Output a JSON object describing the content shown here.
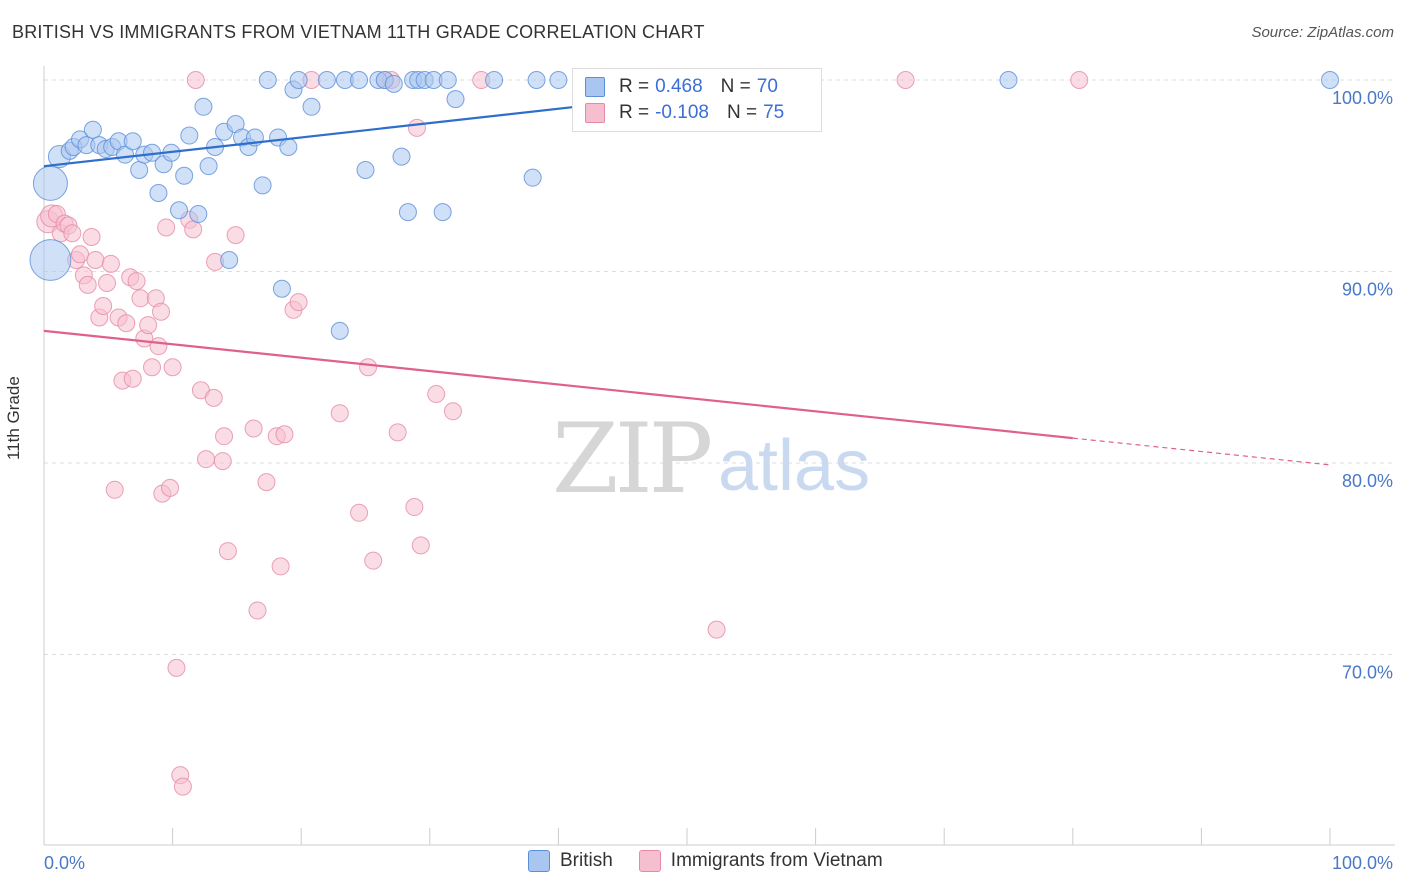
{
  "title": "BRITISH VS IMMIGRANTS FROM VIETNAM 11TH GRADE CORRELATION CHART",
  "source": "Source: ZipAtlas.com",
  "watermark": {
    "zip": "ZIP",
    "atlas": "atlas"
  },
  "colors": {
    "british_fill": "#a9c6f0",
    "british_stroke": "#5b8fd9",
    "british_line": "#2f6fcc",
    "vietnam_fill": "#f6bfd0",
    "vietnam_stroke": "#e68aa8",
    "vietnam_line": "#e0608c",
    "axis_text": "#4a78c8",
    "grid": "#dddddd"
  },
  "stats": {
    "british": {
      "r_label": "R =",
      "r_value": "0.468",
      "n_label": "N =",
      "n_value": "70"
    },
    "vietnam": {
      "r_label": "R =",
      "r_value": "-0.108",
      "n_label": "N =",
      "n_value": "75"
    }
  },
  "legend": {
    "british": "British",
    "vietnam": "Immigrants from Vietnam"
  },
  "chart_data": {
    "type": "scatter",
    "title": "BRITISH VS IMMIGRANTS FROM VIETNAM 11TH GRADE CORRELATION CHART",
    "xlabel": "",
    "ylabel": "11th Grade",
    "xlim": [
      0,
      100
    ],
    "ylim": [
      60,
      101.5
    ],
    "x_tick_labels": [
      "0.0%",
      "100.0%"
    ],
    "y_ticks": [
      70,
      80,
      90,
      100
    ],
    "y_tick_labels": [
      "70.0%",
      "80.0%",
      "90.0%",
      "100.0%"
    ],
    "grid": true,
    "legend_position": "bottom",
    "series": [
      {
        "name": "British",
        "trend": {
          "x": [
            0,
            60
          ],
          "y": [
            95.5,
            100.0
          ]
        },
        "points": [
          [
            0.5,
            94.6,
            2
          ],
          [
            0.5,
            90.6,
            2.4
          ],
          [
            1.2,
            96.0,
            1.3
          ],
          [
            2.0,
            96.3,
            1
          ],
          [
            2.3,
            96.5,
            1
          ],
          [
            2.8,
            96.9,
            1
          ],
          [
            3.3,
            96.6,
            1
          ],
          [
            3.8,
            97.4,
            1
          ],
          [
            4.3,
            96.6,
            1
          ],
          [
            4.8,
            96.4,
            1
          ],
          [
            5.3,
            96.5,
            1
          ],
          [
            5.8,
            96.8,
            1
          ],
          [
            6.3,
            96.1,
            1
          ],
          [
            6.9,
            96.8,
            1
          ],
          [
            7.4,
            95.3,
            1
          ],
          [
            7.8,
            96.1,
            1
          ],
          [
            8.4,
            96.2,
            1
          ],
          [
            8.9,
            94.1,
            1
          ],
          [
            9.3,
            95.6,
            1
          ],
          [
            9.9,
            96.2,
            1
          ],
          [
            10.5,
            93.2,
            1
          ],
          [
            10.9,
            95.0,
            1
          ],
          [
            11.3,
            97.1,
            1
          ],
          [
            12.0,
            93.0,
            1
          ],
          [
            12.4,
            98.6,
            1
          ],
          [
            12.8,
            95.5,
            1
          ],
          [
            13.3,
            96.5,
            1
          ],
          [
            14.0,
            97.3,
            1
          ],
          [
            14.4,
            90.6,
            1
          ],
          [
            14.9,
            97.7,
            1
          ],
          [
            15.4,
            97.0,
            1
          ],
          [
            15.9,
            96.5,
            1
          ],
          [
            16.4,
            97.0,
            1
          ],
          [
            17.0,
            94.5,
            1
          ],
          [
            17.4,
            100.0,
            1
          ],
          [
            18.2,
            97.0,
            1
          ],
          [
            18.5,
            89.1,
            1
          ],
          [
            19.0,
            96.5,
            1
          ],
          [
            19.4,
            99.5,
            1
          ],
          [
            19.8,
            100.0,
            1
          ],
          [
            20.8,
            98.6,
            1
          ],
          [
            22.0,
            100.0,
            1
          ],
          [
            23.0,
            86.9,
            1
          ],
          [
            23.4,
            100.0,
            1
          ],
          [
            24.5,
            100.0,
            1
          ],
          [
            25.0,
            95.3,
            1
          ],
          [
            26.0,
            100.0,
            1
          ],
          [
            26.5,
            100.0,
            1
          ],
          [
            27.2,
            99.8,
            1
          ],
          [
            27.8,
            96.0,
            1
          ],
          [
            28.3,
            93.1,
            1
          ],
          [
            28.7,
            100.0,
            1
          ],
          [
            29.1,
            100.0,
            1
          ],
          [
            29.6,
            100.0,
            1
          ],
          [
            30.3,
            100.0,
            1
          ],
          [
            31.0,
            93.1,
            1
          ],
          [
            31.4,
            100.0,
            1
          ],
          [
            32.0,
            99.0,
            1
          ],
          [
            35.0,
            100.0,
            1
          ],
          [
            38.0,
            94.9,
            1
          ],
          [
            38.3,
            100.0,
            1
          ],
          [
            40.0,
            100.0,
            1
          ],
          [
            42.0,
            100.0,
            1
          ],
          [
            45.0,
            100.0,
            1
          ],
          [
            47.0,
            100.0,
            1
          ],
          [
            48.0,
            100.0,
            1
          ],
          [
            49.5,
            100.0,
            1
          ],
          [
            50.5,
            100.0,
            1
          ],
          [
            75.0,
            100.0,
            1
          ],
          [
            100.0,
            100.0,
            1
          ]
        ]
      },
      {
        "name": "Immigrants from Vietnam",
        "trend": {
          "x": [
            0,
            80
          ],
          "y": [
            86.9,
            81.3
          ]
        },
        "trend_dashed": {
          "x": [
            80,
            100
          ],
          "y": [
            81.3,
            79.9
          ]
        },
        "points": [
          [
            0.3,
            92.6,
            1.3
          ],
          [
            0.6,
            92.9,
            1.3
          ],
          [
            1.0,
            93.0,
            1
          ],
          [
            1.3,
            92.0,
            1
          ],
          [
            1.6,
            92.5,
            1
          ],
          [
            1.9,
            92.4,
            1
          ],
          [
            2.2,
            92.0,
            1
          ],
          [
            2.5,
            90.6,
            1
          ],
          [
            2.8,
            90.9,
            1
          ],
          [
            3.1,
            89.8,
            1
          ],
          [
            3.4,
            89.3,
            1
          ],
          [
            3.7,
            91.8,
            1
          ],
          [
            4.0,
            90.6,
            1
          ],
          [
            4.3,
            87.6,
            1
          ],
          [
            4.6,
            88.2,
            1
          ],
          [
            4.9,
            89.4,
            1
          ],
          [
            5.2,
            90.4,
            1
          ],
          [
            5.5,
            78.6,
            1
          ],
          [
            5.8,
            87.6,
            1
          ],
          [
            6.1,
            84.3,
            1
          ],
          [
            6.4,
            87.3,
            1
          ],
          [
            6.7,
            89.7,
            1
          ],
          [
            6.9,
            84.4,
            1
          ],
          [
            7.2,
            89.5,
            1
          ],
          [
            7.5,
            88.6,
            1
          ],
          [
            7.8,
            86.5,
            1
          ],
          [
            8.1,
            87.2,
            1
          ],
          [
            8.4,
            85.0,
            1
          ],
          [
            8.7,
            88.6,
            1
          ],
          [
            8.9,
            86.1,
            1
          ],
          [
            9.1,
            87.9,
            1
          ],
          [
            9.2,
            78.4,
            1
          ],
          [
            9.5,
            92.3,
            1
          ],
          [
            9.8,
            78.7,
            1
          ],
          [
            10.0,
            85.0,
            1
          ],
          [
            10.3,
            69.3,
            1
          ],
          [
            10.6,
            63.7,
            1
          ],
          [
            10.8,
            63.1,
            1
          ],
          [
            11.3,
            92.7,
            1
          ],
          [
            11.6,
            92.2,
            1
          ],
          [
            11.8,
            100.0,
            1
          ],
          [
            12.2,
            83.8,
            1
          ],
          [
            12.6,
            80.2,
            1
          ],
          [
            13.2,
            83.4,
            1
          ],
          [
            13.3,
            90.5,
            1
          ],
          [
            13.9,
            80.1,
            1
          ],
          [
            14.0,
            81.4,
            1
          ],
          [
            14.3,
            75.4,
            1
          ],
          [
            14.9,
            91.9,
            1
          ],
          [
            16.3,
            81.8,
            1
          ],
          [
            16.6,
            72.3,
            1
          ],
          [
            17.3,
            79.0,
            1
          ],
          [
            18.1,
            81.4,
            1
          ],
          [
            18.4,
            74.6,
            1
          ],
          [
            18.7,
            81.5,
            1
          ],
          [
            19.4,
            88.0,
            1
          ],
          [
            19.8,
            88.4,
            1
          ],
          [
            20.8,
            100.0,
            1
          ],
          [
            23.0,
            82.6,
            1
          ],
          [
            24.5,
            77.4,
            1
          ],
          [
            25.2,
            85.0,
            1
          ],
          [
            25.6,
            74.9,
            1
          ],
          [
            26.5,
            100.0,
            1
          ],
          [
            27.0,
            100.0,
            1
          ],
          [
            27.5,
            81.6,
            1
          ],
          [
            28.8,
            77.7,
            1
          ],
          [
            29.0,
            97.5,
            1
          ],
          [
            29.3,
            75.7,
            1
          ],
          [
            30.5,
            83.6,
            1
          ],
          [
            31.8,
            82.7,
            1
          ],
          [
            34.0,
            100.0,
            1
          ],
          [
            45.0,
            100.0,
            1
          ],
          [
            52.3,
            71.3,
            1
          ],
          [
            67.0,
            100.0,
            1
          ],
          [
            80.5,
            100.0,
            1
          ]
        ]
      }
    ]
  }
}
